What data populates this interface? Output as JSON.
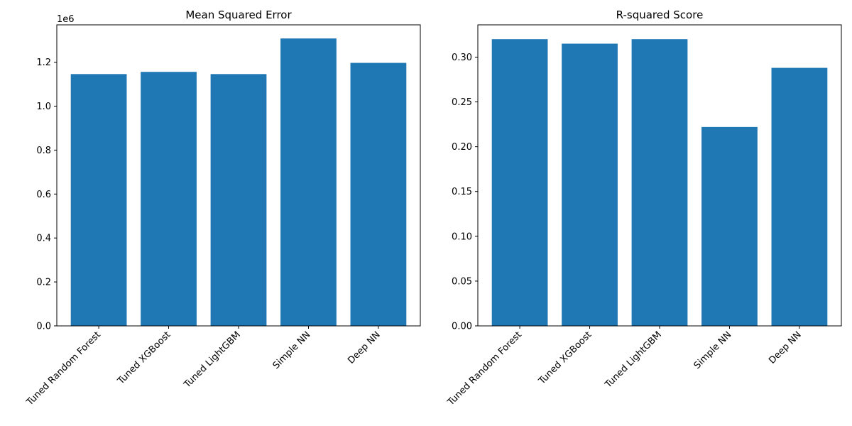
{
  "colors": {
    "bar": "#1f77b4",
    "axis": "#000000",
    "background": "#ffffff"
  },
  "chart_data": [
    {
      "type": "bar",
      "title": "Mean Squared Error",
      "categories": [
        "Tuned Random Forest",
        "Tuned XGBoost",
        "Tuned LightGBM",
        "Simple NN",
        "Deep NN"
      ],
      "values": [
        1146000,
        1156000,
        1146000,
        1308000,
        1197000
      ],
      "ylim": [
        0,
        1370000
      ],
      "ytick_values": [
        0,
        200000,
        400000,
        600000,
        800000,
        1000000,
        1200000
      ],
      "ytick_labels": [
        "0.0",
        "0.2",
        "0.4",
        "0.6",
        "0.8",
        "1.0",
        "1.2"
      ],
      "offset_text": "1e6",
      "xlabel": "",
      "ylabel": "",
      "grid": false,
      "legend": "none"
    },
    {
      "type": "bar",
      "title": "R-squared Score",
      "categories": [
        "Tuned Random Forest",
        "Tuned XGBoost",
        "Tuned LightGBM",
        "Simple NN",
        "Deep NN"
      ],
      "values": [
        0.32,
        0.315,
        0.32,
        0.222,
        0.288
      ],
      "ylim": [
        0,
        0.336
      ],
      "ytick_values": [
        0,
        0.05,
        0.1,
        0.15,
        0.2,
        0.25,
        0.3
      ],
      "ytick_labels": [
        "0.00",
        "0.05",
        "0.10",
        "0.15",
        "0.20",
        "0.25",
        "0.30"
      ],
      "offset_text": "",
      "xlabel": "",
      "ylabel": "",
      "grid": false,
      "legend": "none"
    }
  ]
}
